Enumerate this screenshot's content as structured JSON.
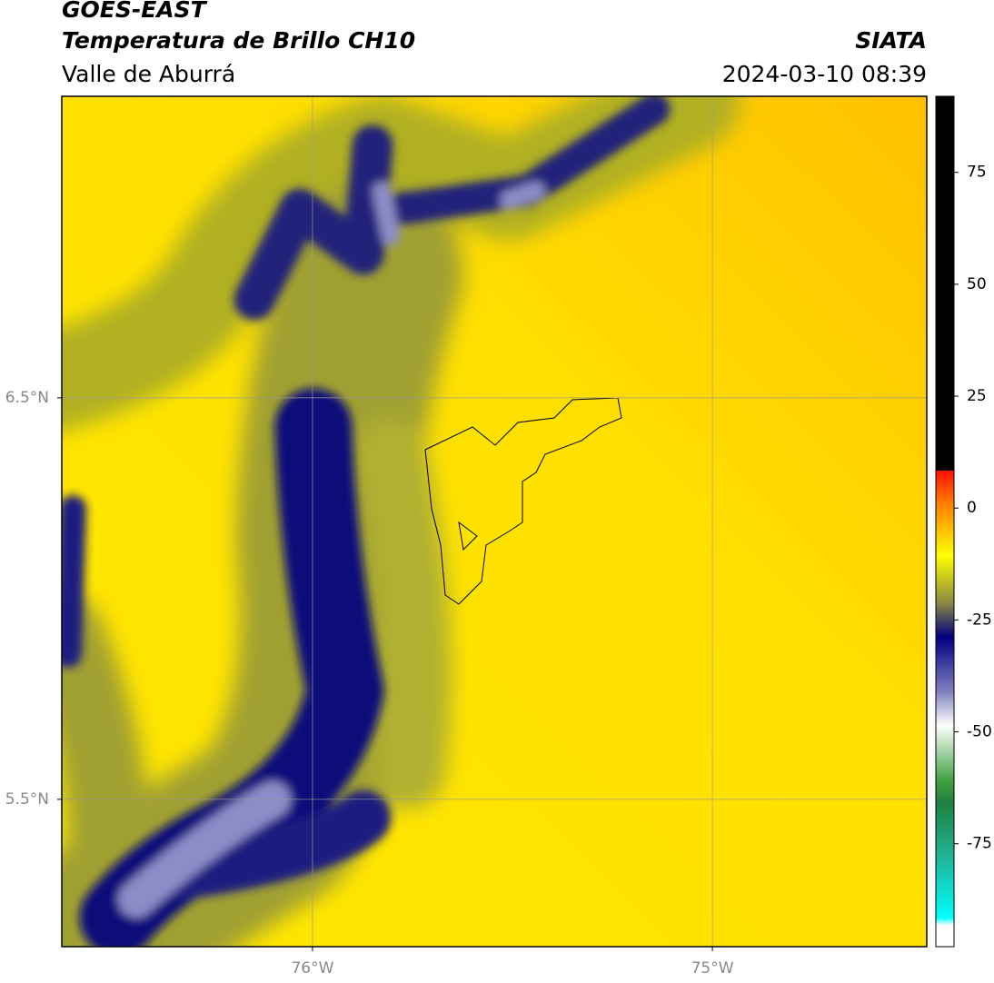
{
  "header": {
    "title": "GOES-EAST",
    "subtitle": "Temperatura de Brillo CH10",
    "region": "Valle de Aburrá",
    "source": "SIATA",
    "timestamp": "2024-03-10 08:39"
  },
  "map": {
    "xlim": [
      -76.627,
      -74.464
    ],
    "ylim": [
      5.133,
      7.251
    ],
    "xticks": [
      {
        "value": -76,
        "label": "76°W"
      },
      {
        "value": -75,
        "label": "75°W"
      }
    ],
    "yticks": [
      {
        "value": 5.5,
        "label": "5.5°N"
      },
      {
        "value": 6.5,
        "label": "6.5°N"
      }
    ],
    "grid": true
  },
  "colorbar": {
    "lim": [
      -98,
      92
    ],
    "ticks": [
      -75,
      -50,
      -25,
      0,
      25,
      50,
      75
    ]
  }
}
